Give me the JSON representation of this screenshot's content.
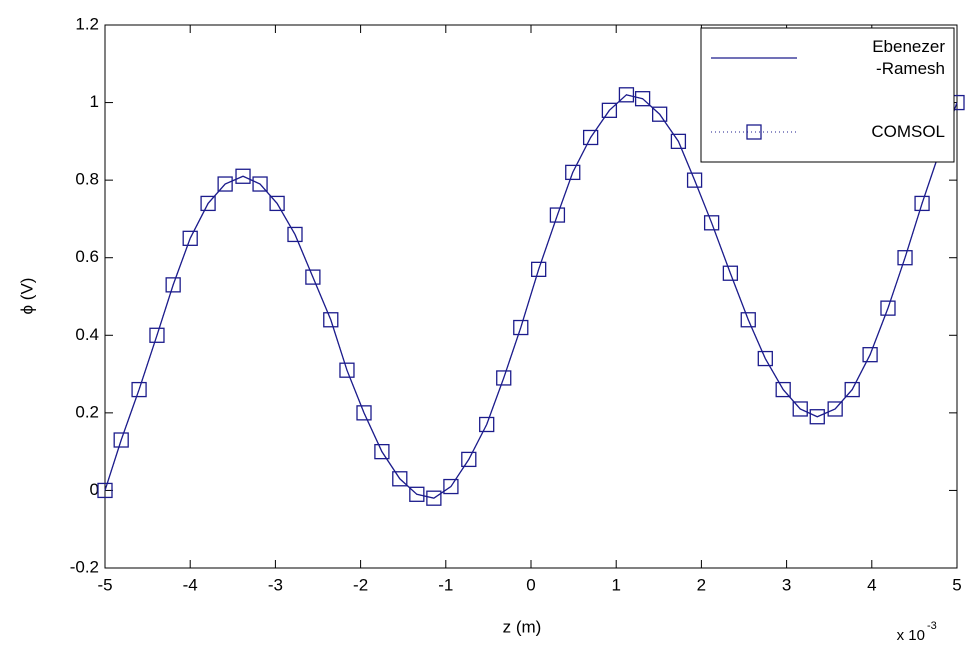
{
  "chart_data": {
    "type": "line",
    "xlabel": "z (m)",
    "ylabel": "ϕ (V)",
    "axis_multiplier": {
      "base": "x 10",
      "exponent": "-3"
    },
    "x": [
      -5.0,
      -4.81,
      -4.6,
      -4.39,
      -4.2,
      -4.0,
      -3.79,
      -3.59,
      -3.38,
      -3.18,
      -2.98,
      -2.77,
      -2.56,
      -2.35,
      -2.16,
      -1.96,
      -1.75,
      -1.54,
      -1.34,
      -1.14,
      -0.94,
      -0.73,
      -0.52,
      -0.32,
      -0.12,
      0.09,
      0.31,
      0.49,
      0.7,
      0.92,
      1.12,
      1.31,
      1.51,
      1.73,
      1.92,
      2.12,
      2.34,
      2.55,
      2.75,
      2.96,
      3.16,
      3.36,
      3.57,
      3.77,
      3.98,
      4.19,
      4.39,
      4.59,
      4.79,
      5.0
    ],
    "series": [
      {
        "name": "Ebenezer\n-Ramesh",
        "color": "#1c1c8c",
        "style": "solid",
        "values": [
          0.0,
          0.13,
          0.26,
          0.4,
          0.53,
          0.65,
          0.74,
          0.79,
          0.81,
          0.79,
          0.74,
          0.66,
          0.55,
          0.44,
          0.31,
          0.2,
          0.1,
          0.03,
          -0.01,
          -0.02,
          0.01,
          0.08,
          0.17,
          0.29,
          0.42,
          0.57,
          0.71,
          0.82,
          0.91,
          0.98,
          1.02,
          1.01,
          0.97,
          0.9,
          0.8,
          0.69,
          0.56,
          0.44,
          0.34,
          0.26,
          0.21,
          0.19,
          0.21,
          0.26,
          0.35,
          0.47,
          0.6,
          0.74,
          0.87,
          1.0
        ]
      },
      {
        "name": "COMSOL",
        "color": "#1c1c8c",
        "style": "dotted-square",
        "values": [
          0.0,
          0.13,
          0.26,
          0.4,
          0.53,
          0.65,
          0.74,
          0.79,
          0.81,
          0.79,
          0.74,
          0.66,
          0.55,
          0.44,
          0.31,
          0.2,
          0.1,
          0.03,
          -0.01,
          -0.02,
          0.01,
          0.08,
          0.17,
          0.29,
          0.42,
          0.57,
          0.71,
          0.82,
          0.91,
          0.98,
          1.02,
          1.01,
          0.97,
          0.9,
          0.8,
          0.69,
          0.56,
          0.44,
          0.34,
          0.26,
          0.21,
          0.19,
          0.21,
          0.26,
          0.35,
          0.47,
          0.6,
          0.74,
          0.87,
          1.0
        ]
      }
    ],
    "xlim": [
      -5,
      5
    ],
    "xticks": [
      -5,
      -4,
      -3,
      -2,
      -1,
      0,
      1,
      2,
      3,
      4,
      5
    ],
    "ylim": [
      -0.2,
      1.2
    ],
    "yticks": [
      -0.2,
      0,
      0.2,
      0.4,
      0.6,
      0.8,
      1,
      1.2
    ],
    "grid": false,
    "legend": "upper right"
  }
}
